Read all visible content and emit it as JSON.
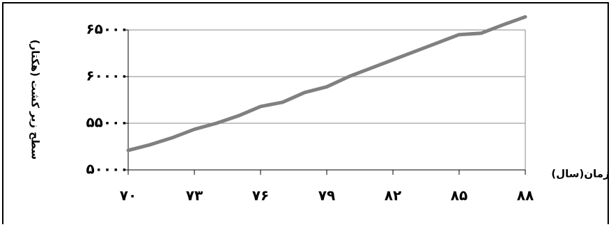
{
  "chart_data": {
    "type": "line",
    "title": "",
    "xlabel": "زمان(سال)",
    "ylabel": "سطح زیر کشت (هکتار)",
    "xlim": [
      70,
      88
    ],
    "ylim": [
      50000,
      65000
    ],
    "grid": true,
    "x": [
      70,
      71,
      72,
      73,
      74,
      75,
      76,
      77,
      78,
      79,
      80,
      81,
      82,
      83,
      84,
      85,
      86,
      87,
      88
    ],
    "y": [
      52100,
      52700,
      53450,
      54350,
      55000,
      55800,
      56800,
      57250,
      58300,
      58900,
      60000,
      60900,
      61800,
      62700,
      63600,
      64500,
      64650,
      65550,
      66400
    ],
    "series": [
      {
        "values": [
          52100,
          52700,
          53450,
          54350,
          55000,
          55800,
          56800,
          57250,
          58300,
          58900,
          60000,
          60900,
          61800,
          62700,
          63600,
          64500,
          64650,
          65550,
          66400
        ]
      }
    ],
    "x_ticks": [
      "۷۰",
      "۷۳",
      "۷۶",
      "۷۹",
      "۸۲",
      "۸۵",
      "۸۸"
    ],
    "y_ticks": [
      "۵۰۰۰۰",
      "۵۵۰۰۰",
      "۶۰۰۰۰",
      "۶۵۰۰۰"
    ],
    "colors": {
      "line": "#808080",
      "grid": "#888888",
      "axis": "#000000",
      "frame": "#000000"
    }
  }
}
